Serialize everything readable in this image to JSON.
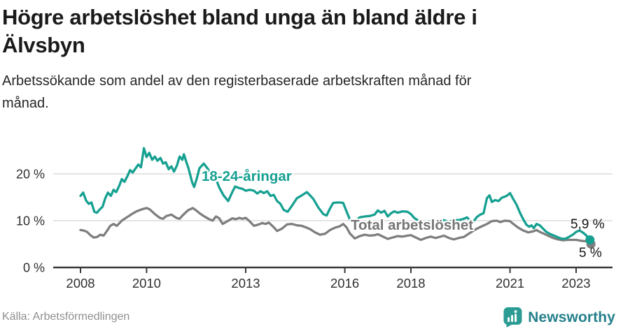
{
  "footer": {
    "source": "Källa: Arbetsförmedlingen",
    "brand": "Newsworthy"
  },
  "colors": {
    "accent_teal": "#16a091",
    "line_gray": "#7e7e7e",
    "label_gray": "#767676",
    "grid": "#dcdcdc",
    "axis": "#3a3a3a",
    "tick_text": "#2f2f2f",
    "brand_bubble": "#2b9c94",
    "brand_text": "#26808c"
  },
  "chart_data": {
    "type": "line",
    "title": "Högre arbetslöshet bland unga än bland äldre i Älvsbyn",
    "subtitle": "Arbetssökande som andel av den registerbaserade arbetskraften månad för månad.",
    "unit": "%",
    "grid": true,
    "legend_position": "inline-labels",
    "x_axis": {
      "range": [
        2007.2,
        2024.0
      ],
      "ticks": [
        {
          "year": 2008,
          "label": "2008"
        },
        {
          "year": 2010,
          "label": "2010"
        },
        {
          "year": 2013,
          "label": "2013"
        },
        {
          "year": 2016,
          "label": "2016"
        },
        {
          "year": 2018,
          "label": "2018"
        },
        {
          "year": 2021,
          "label": "2021"
        },
        {
          "year": 2023,
          "label": "2023"
        }
      ]
    },
    "y_axis": {
      "range": [
        0,
        26.5
      ],
      "ticks": [
        {
          "value": 0,
          "label": "0 %"
        },
        {
          "value": 10,
          "label": "10 %"
        },
        {
          "value": 20,
          "label": "20 %"
        }
      ]
    },
    "series": [
      {
        "name": "18-24-åringar",
        "color": "#16a091",
        "end_label": "5,9 %",
        "end_value": 5.9,
        "points": [
          [
            2008.0,
            15.3
          ],
          [
            2008.08,
            16.0
          ],
          [
            2008.17,
            14.3
          ],
          [
            2008.25,
            13.6
          ],
          [
            2008.33,
            13.9
          ],
          [
            2008.42,
            11.9
          ],
          [
            2008.5,
            11.7
          ],
          [
            2008.58,
            12.4
          ],
          [
            2008.67,
            13.0
          ],
          [
            2008.75,
            14.8
          ],
          [
            2008.83,
            16.0
          ],
          [
            2008.92,
            15.3
          ],
          [
            2009.0,
            16.6
          ],
          [
            2009.08,
            16.1
          ],
          [
            2009.17,
            17.4
          ],
          [
            2009.25,
            18.9
          ],
          [
            2009.33,
            18.3
          ],
          [
            2009.42,
            19.5
          ],
          [
            2009.5,
            20.8
          ],
          [
            2009.58,
            20.3
          ],
          [
            2009.67,
            21.2
          ],
          [
            2009.75,
            22.0
          ],
          [
            2009.83,
            21.4
          ],
          [
            2009.92,
            25.5
          ],
          [
            2010.0,
            23.6
          ],
          [
            2010.08,
            24.5
          ],
          [
            2010.17,
            23.0
          ],
          [
            2010.25,
            23.7
          ],
          [
            2010.33,
            22.8
          ],
          [
            2010.42,
            23.4
          ],
          [
            2010.5,
            22.2
          ],
          [
            2010.58,
            22.5
          ],
          [
            2010.67,
            21.0
          ],
          [
            2010.75,
            21.6
          ],
          [
            2010.83,
            20.5
          ],
          [
            2010.92,
            21.8
          ],
          [
            2011.0,
            23.7
          ],
          [
            2011.08,
            23.0
          ],
          [
            2011.13,
            24.2
          ],
          [
            2011.21,
            22.4
          ],
          [
            2011.27,
            21.2
          ],
          [
            2011.38,
            18.2
          ],
          [
            2011.44,
            17.2
          ],
          [
            2011.52,
            19.0
          ],
          [
            2011.6,
            21.2
          ],
          [
            2011.73,
            22.2
          ],
          [
            2011.83,
            21.3
          ],
          [
            2011.92,
            20.4
          ],
          [
            2012.0,
            19.6
          ],
          [
            2012.1,
            18.9
          ],
          [
            2012.2,
            17.1
          ],
          [
            2012.33,
            15.4
          ],
          [
            2012.47,
            14.2
          ],
          [
            2012.6,
            16.2
          ],
          [
            2012.68,
            17.3
          ],
          [
            2012.79,
            17.0
          ],
          [
            2012.9,
            16.8
          ],
          [
            2013.0,
            16.4
          ],
          [
            2013.13,
            16.6
          ],
          [
            2013.25,
            16.4
          ],
          [
            2013.35,
            15.8
          ],
          [
            2013.45,
            16.3
          ],
          [
            2013.55,
            15.9
          ],
          [
            2013.65,
            16.3
          ],
          [
            2013.75,
            15.3
          ],
          [
            2013.85,
            15.5
          ],
          [
            2013.95,
            14.2
          ],
          [
            2014.05,
            13.6
          ],
          [
            2014.15,
            12.3
          ],
          [
            2014.27,
            11.9
          ],
          [
            2014.4,
            13.2
          ],
          [
            2014.55,
            14.8
          ],
          [
            2014.7,
            15.4
          ],
          [
            2014.85,
            16.1
          ],
          [
            2014.95,
            15.4
          ],
          [
            2015.05,
            14.6
          ],
          [
            2015.2,
            12.8
          ],
          [
            2015.35,
            11.4
          ],
          [
            2015.45,
            11.1
          ],
          [
            2015.55,
            12.6
          ],
          [
            2015.65,
            13.8
          ],
          [
            2015.8,
            13.9
          ],
          [
            2015.95,
            13.8
          ],
          [
            2016.05,
            12.0
          ],
          [
            2016.15,
            10.3
          ],
          [
            2016.3,
            9.7
          ],
          [
            2016.45,
            10.7
          ],
          [
            2016.6,
            10.9
          ],
          [
            2016.75,
            11.0
          ],
          [
            2016.9,
            11.3
          ],
          [
            2017.0,
            12.2
          ],
          [
            2017.1,
            11.7
          ],
          [
            2017.2,
            12.1
          ],
          [
            2017.3,
            10.9
          ],
          [
            2017.4,
            11.6
          ],
          [
            2017.5,
            12.0
          ],
          [
            2017.6,
            11.7
          ],
          [
            2017.75,
            12.0
          ],
          [
            2017.9,
            11.9
          ],
          [
            2018.0,
            11.4
          ],
          [
            2018.1,
            10.6
          ],
          [
            2018.25,
            9.9
          ],
          [
            2018.4,
            9.6
          ],
          [
            2018.55,
            9.8
          ],
          [
            2018.7,
            9.5
          ],
          [
            2018.85,
            10.0
          ],
          [
            2019.0,
            10.1
          ],
          [
            2019.15,
            9.7
          ],
          [
            2019.3,
            10.2
          ],
          [
            2019.45,
            10.1
          ],
          [
            2019.6,
            10.4
          ],
          [
            2019.7,
            10.7
          ],
          [
            2019.8,
            10.0
          ],
          [
            2019.9,
            9.9
          ],
          [
            2020.0,
            10.8
          ],
          [
            2020.1,
            11.3
          ],
          [
            2020.2,
            11.6
          ],
          [
            2020.3,
            14.8
          ],
          [
            2020.38,
            15.4
          ],
          [
            2020.45,
            14.0
          ],
          [
            2020.55,
            14.4
          ],
          [
            2020.65,
            14.2
          ],
          [
            2020.75,
            14.9
          ],
          [
            2020.9,
            15.3
          ],
          [
            2021.0,
            15.9
          ],
          [
            2021.1,
            14.6
          ],
          [
            2021.2,
            13.4
          ],
          [
            2021.3,
            11.7
          ],
          [
            2021.4,
            10.3
          ],
          [
            2021.5,
            9.1
          ],
          [
            2021.58,
            8.7
          ],
          [
            2021.65,
            9.0
          ],
          [
            2021.72,
            8.4
          ],
          [
            2021.8,
            9.3
          ],
          [
            2021.9,
            9.0
          ],
          [
            2022.0,
            8.3
          ],
          [
            2022.1,
            7.6
          ],
          [
            2022.2,
            7.2
          ],
          [
            2022.3,
            6.9
          ],
          [
            2022.4,
            6.6
          ],
          [
            2022.5,
            6.3
          ],
          [
            2022.6,
            6.1
          ],
          [
            2022.7,
            6.2
          ],
          [
            2022.8,
            6.6
          ],
          [
            2022.9,
            7.0
          ],
          [
            2023.0,
            7.6
          ],
          [
            2023.1,
            7.9
          ],
          [
            2023.2,
            7.5
          ],
          [
            2023.3,
            6.9
          ],
          [
            2023.42,
            5.9
          ]
        ]
      },
      {
        "name": "Total arbetslöshet",
        "color": "#7e7e7e",
        "end_label": "5 %",
        "end_value": 5.0,
        "points": [
          [
            2008.0,
            8.0
          ],
          [
            2008.1,
            7.9
          ],
          [
            2008.2,
            7.6
          ],
          [
            2008.3,
            6.9
          ],
          [
            2008.4,
            6.4
          ],
          [
            2008.5,
            6.5
          ],
          [
            2008.6,
            7.0
          ],
          [
            2008.7,
            6.8
          ],
          [
            2008.8,
            7.8
          ],
          [
            2008.9,
            8.9
          ],
          [
            2009.0,
            9.3
          ],
          [
            2009.1,
            8.9
          ],
          [
            2009.25,
            10.0
          ],
          [
            2009.4,
            10.7
          ],
          [
            2009.55,
            11.4
          ],
          [
            2009.7,
            12.0
          ],
          [
            2009.85,
            12.4
          ],
          [
            2010.0,
            12.7
          ],
          [
            2010.1,
            12.4
          ],
          [
            2010.25,
            11.4
          ],
          [
            2010.4,
            10.6
          ],
          [
            2010.5,
            10.4
          ],
          [
            2010.6,
            11.0
          ],
          [
            2010.75,
            11.3
          ],
          [
            2010.9,
            10.6
          ],
          [
            2011.0,
            10.4
          ],
          [
            2011.1,
            11.2
          ],
          [
            2011.25,
            12.2
          ],
          [
            2011.4,
            12.7
          ],
          [
            2011.5,
            12.2
          ],
          [
            2011.6,
            11.6
          ],
          [
            2011.75,
            10.9
          ],
          [
            2011.9,
            10.3
          ],
          [
            2012.0,
            10.0
          ],
          [
            2012.1,
            10.9
          ],
          [
            2012.2,
            10.5
          ],
          [
            2012.3,
            9.3
          ],
          [
            2012.45,
            9.9
          ],
          [
            2012.6,
            10.5
          ],
          [
            2012.7,
            10.3
          ],
          [
            2012.8,
            10.6
          ],
          [
            2012.9,
            10.4
          ],
          [
            2013.0,
            10.6
          ],
          [
            2013.1,
            10.0
          ],
          [
            2013.25,
            8.9
          ],
          [
            2013.4,
            9.2
          ],
          [
            2013.5,
            9.5
          ],
          [
            2013.6,
            9.3
          ],
          [
            2013.7,
            9.6
          ],
          [
            2013.85,
            8.6
          ],
          [
            2013.95,
            7.8
          ],
          [
            2014.1,
            8.3
          ],
          [
            2014.25,
            9.2
          ],
          [
            2014.4,
            9.3
          ],
          [
            2014.55,
            9.0
          ],
          [
            2014.7,
            8.9
          ],
          [
            2014.85,
            8.5
          ],
          [
            2014.95,
            8.2
          ],
          [
            2015.1,
            7.5
          ],
          [
            2015.25,
            7.0
          ],
          [
            2015.4,
            7.2
          ],
          [
            2015.55,
            8.0
          ],
          [
            2015.7,
            8.5
          ],
          [
            2015.85,
            8.8
          ],
          [
            2015.95,
            9.3
          ],
          [
            2016.05,
            8.6
          ],
          [
            2016.15,
            7.3
          ],
          [
            2016.3,
            6.2
          ],
          [
            2016.45,
            6.7
          ],
          [
            2016.6,
            7.0
          ],
          [
            2016.75,
            6.8
          ],
          [
            2016.9,
            6.9
          ],
          [
            2017.0,
            7.1
          ],
          [
            2017.15,
            6.6
          ],
          [
            2017.3,
            6.1
          ],
          [
            2017.45,
            6.4
          ],
          [
            2017.6,
            6.7
          ],
          [
            2017.75,
            6.6
          ],
          [
            2017.9,
            6.8
          ],
          [
            2018.0,
            6.9
          ],
          [
            2018.15,
            6.4
          ],
          [
            2018.3,
            5.9
          ],
          [
            2018.45,
            6.3
          ],
          [
            2018.6,
            6.6
          ],
          [
            2018.75,
            6.3
          ],
          [
            2018.9,
            6.6
          ],
          [
            2019.0,
            6.8
          ],
          [
            2019.15,
            6.3
          ],
          [
            2019.3,
            6.0
          ],
          [
            2019.45,
            6.3
          ],
          [
            2019.6,
            6.5
          ],
          [
            2019.75,
            7.2
          ],
          [
            2019.9,
            7.9
          ],
          [
            2020.0,
            8.3
          ],
          [
            2020.15,
            8.8
          ],
          [
            2020.3,
            9.3
          ],
          [
            2020.45,
            9.9
          ],
          [
            2020.6,
            10.0
          ],
          [
            2020.7,
            9.7
          ],
          [
            2020.85,
            10.0
          ],
          [
            2021.0,
            9.9
          ],
          [
            2021.1,
            9.3
          ],
          [
            2021.25,
            8.5
          ],
          [
            2021.4,
            7.9
          ],
          [
            2021.55,
            7.5
          ],
          [
            2021.7,
            7.7
          ],
          [
            2021.8,
            8.0
          ],
          [
            2021.9,
            7.6
          ],
          [
            2022.0,
            7.3
          ],
          [
            2022.15,
            6.8
          ],
          [
            2022.3,
            6.3
          ],
          [
            2022.45,
            6.0
          ],
          [
            2022.6,
            5.8
          ],
          [
            2022.75,
            5.9
          ],
          [
            2022.9,
            5.9
          ],
          [
            2023.0,
            5.9
          ],
          [
            2023.15,
            5.7
          ],
          [
            2023.3,
            5.6
          ],
          [
            2023.45,
            5.0
          ]
        ]
      }
    ]
  }
}
